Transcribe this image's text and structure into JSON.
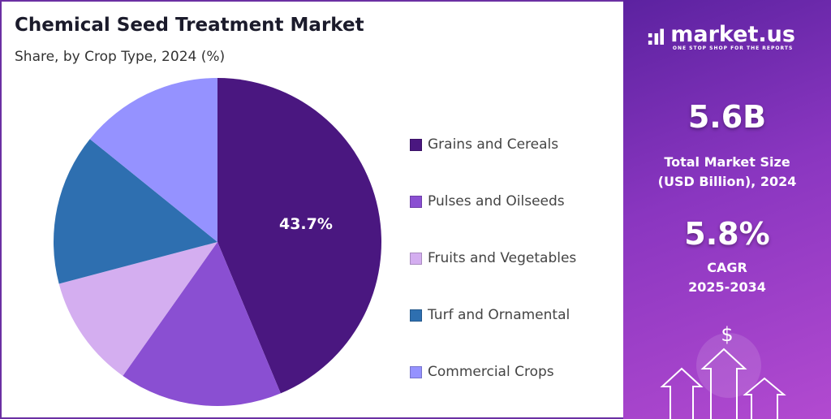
{
  "header": {
    "title": "Chemical Seed Treatment Market",
    "subtitle": "Share, by Crop Type, 2024 (%)"
  },
  "chart_data": {
    "type": "pie",
    "title": "Chemical Seed Treatment Market",
    "subtitle": "Share, by Crop Type, 2024 (%)",
    "categories": [
      "Grains and Cereals",
      "Pulses and Oilseeds",
      "Fruits and Vegetables",
      "Turf and Ornamental",
      "Commercial Crops"
    ],
    "values": [
      43.7,
      16.1,
      11.1,
      14.9,
      14.2
    ],
    "colors": [
      "#4a1780",
      "#8a4fd2",
      "#d4aef0",
      "#2e6fb0",
      "#9592ff"
    ],
    "data_labels": [
      "43.7%",
      "",
      "",
      "",
      ""
    ],
    "start_angle": "top",
    "direction": "clockwise",
    "legend_position": "right"
  },
  "panel": {
    "logo": {
      "name": "market.us",
      "tagline": "ONE STOP SHOP FOR THE REPORTS"
    },
    "market_size": "5.6B",
    "market_size_label_1": "Total Market Size",
    "market_size_label_2": "(USD Billion), 2024",
    "cagr": "5.8%",
    "cagr_label_1": "CAGR",
    "cagr_label_2": "2025-2034",
    "icon": "dollar-arrows-icon"
  }
}
